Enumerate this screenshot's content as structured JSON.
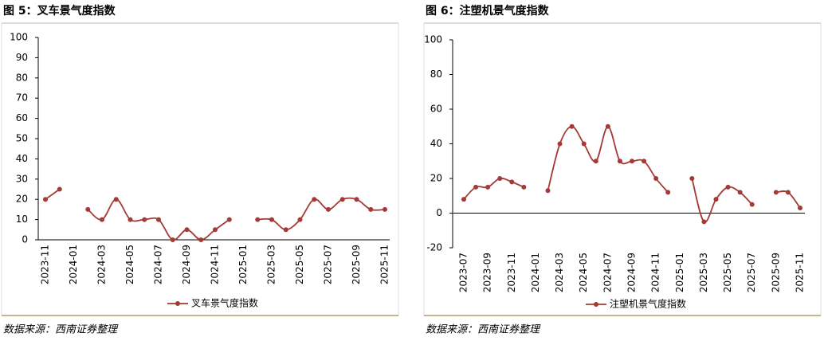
{
  "chart_data": [
    {
      "type": "line",
      "title": "图 5：叉车景气度指数",
      "note": "数据来源：西南证券整理",
      "categories": [
        "2023-11",
        null,
        "2024-01",
        null,
        "2024-03",
        null,
        "2024-05",
        null,
        "2024-07",
        null,
        "2024-09",
        null,
        "2024-11",
        null,
        "2025-01",
        null,
        "2025-03",
        null,
        "2025-05",
        null,
        "2025-07",
        null,
        "2025-09",
        null,
        "2025-11"
      ],
      "series": [
        {
          "name": "叉车景气度指数",
          "color": "#a33a36",
          "values": [
            20,
            25,
            null,
            15,
            10,
            20,
            10,
            10,
            10,
            0,
            5,
            0,
            5,
            10,
            null,
            10,
            10,
            5,
            10,
            20,
            15,
            20,
            20,
            15,
            15
          ]
        }
      ],
      "ylim": [
        0,
        100
      ],
      "yticks": [
        0,
        10,
        20,
        30,
        40,
        50,
        60,
        70,
        80,
        90,
        100
      ],
      "legend": "bottom"
    },
    {
      "type": "line",
      "title": "图 6：注塑机景气度指数",
      "note": "数据来源：西南证券整理",
      "categories": [
        "2023-07",
        null,
        "2023-09",
        null,
        "2023-11",
        null,
        "2024-01",
        null,
        "2024-03",
        null,
        "2024-05",
        null,
        "2024-07",
        null,
        "2024-09",
        null,
        "2024-11",
        null,
        "2025-01",
        null,
        "2025-03",
        null,
        "2025-05",
        null,
        "2025-07",
        null,
        "2025-09",
        null,
        "2025-11"
      ],
      "series": [
        {
          "name": "注塑机景气度指数",
          "color": "#a33a36",
          "values": [
            8,
            15,
            15,
            20,
            18,
            15,
            null,
            13,
            40,
            50,
            40,
            30,
            50,
            30,
            30,
            30,
            20,
            12,
            null,
            20,
            -5,
            8,
            15,
            12,
            5,
            null,
            12,
            12,
            3
          ]
        }
      ],
      "ylim": [
        -20,
        100
      ],
      "yticks": [
        -20,
        0,
        20,
        40,
        60,
        80,
        100
      ],
      "legend": "bottom"
    }
  ]
}
